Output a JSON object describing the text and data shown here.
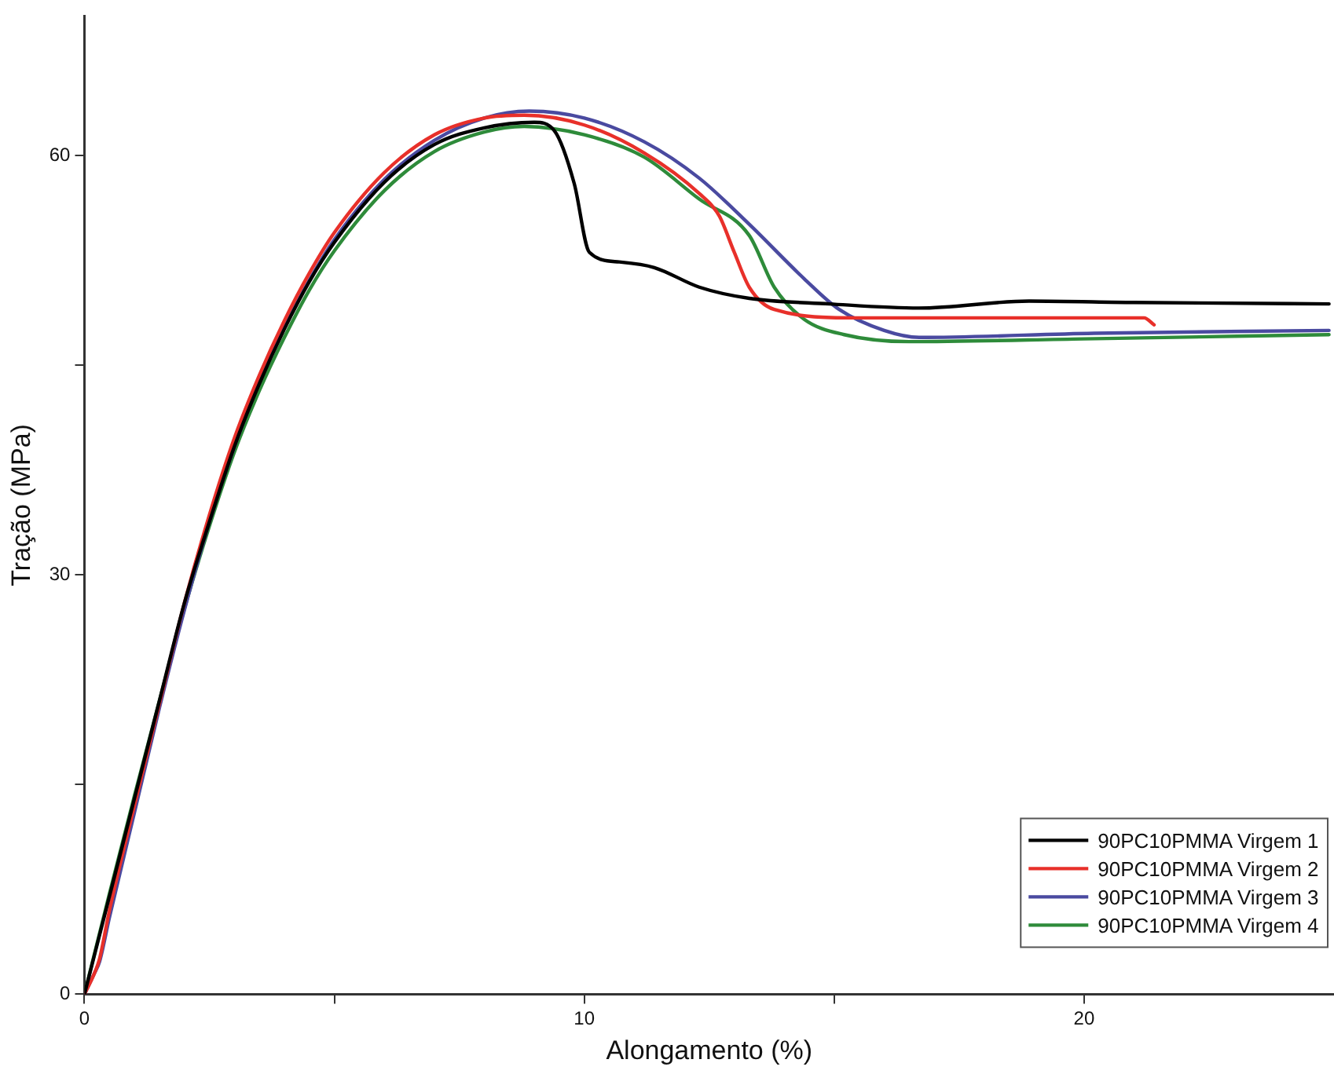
{
  "chart_data": {
    "type": "line",
    "xlabel": "Alongamento (%)",
    "ylabel": "Tração (MPa)",
    "xlim": [
      0,
      25
    ],
    "ylim": [
      0,
      70
    ],
    "xticks": [
      0,
      {
        "value": 5,
        "label": null
      },
      10,
      {
        "value": 15,
        "label": null
      },
      20
    ],
    "yticks": [
      0,
      {
        "value": 15,
        "label": null
      },
      30,
      {
        "value": 45,
        "label": null
      },
      60
    ],
    "grid": false,
    "legend": "bottom right",
    "marker": "none",
    "line_style": "solid",
    "series": [
      {
        "name": "90PC10PMMA Virgem 1",
        "color": "#000000",
        "x": [
          0,
          0.5,
          1,
          1.5,
          2,
          2.5,
          3,
          3.5,
          4,
          4.5,
          5,
          6,
          7,
          8,
          9,
          9.4,
          9.8,
          10.1,
          10.7,
          11.4,
          12.3,
          13.3,
          14.9,
          16.7,
          18.9,
          21,
          24.9
        ],
        "values": [
          0,
          7,
          14,
          21,
          28,
          33.8,
          39.2,
          43.7,
          47.6,
          51,
          53.8,
          58.1,
          60.8,
          62,
          62.4,
          61.8,
          58,
          53.1,
          52.4,
          52,
          50.6,
          49.8,
          49.4,
          49.1,
          49.6,
          49.5,
          49.4
        ]
      },
      {
        "name": "90PC10PMMA Virgem 2",
        "color": "#e8302a",
        "x": [
          0,
          0.2,
          0.3,
          0.5,
          1,
          1.5,
          2,
          2.5,
          3,
          3.5,
          4,
          4.5,
          5,
          6,
          7,
          8,
          8.8,
          10,
          11.2,
          12.3,
          12.7,
          13,
          13.3,
          13.8,
          15.4,
          19.8,
          21.2,
          21.4
        ],
        "values": [
          0,
          1.5,
          2.5,
          6,
          13.5,
          20.8,
          28,
          34.3,
          39.8,
          44.3,
          48.2,
          51.6,
          54.5,
          58.8,
          61.5,
          62.7,
          62.9,
          62.2,
          60.2,
          57.3,
          55.7,
          53.1,
          50.6,
          49,
          48.4,
          48.4,
          48.4,
          47.9
        ]
      },
      {
        "name": "90PC10PMMA Virgem 3",
        "color": "#4a4aa0",
        "x": [
          0,
          0.2,
          0.3,
          0.5,
          1,
          1.5,
          2,
          2.5,
          3,
          3.5,
          4,
          4.5,
          5,
          6,
          7,
          8,
          8.9,
          10,
          11.2,
          12.3,
          13.3,
          14.4,
          15.1,
          16,
          16.7,
          20.2,
          24.9
        ],
        "values": [
          0,
          1.5,
          2.3,
          5.5,
          13,
          20.5,
          27.5,
          33.8,
          39.2,
          43.8,
          47.7,
          51.1,
          54,
          58.3,
          61.1,
          62.7,
          63.2,
          62.7,
          61,
          58.4,
          55.1,
          51.2,
          49,
          47.5,
          47,
          47.3,
          47.5
        ]
      },
      {
        "name": "90PC10PMMA Virgem 4",
        "color": "#2e8b3a",
        "x": [
          0,
          0.5,
          1,
          1.5,
          2,
          2.5,
          3,
          3.5,
          4,
          4.5,
          5,
          6,
          7,
          8,
          8.8,
          10,
          11.2,
          12.3,
          13.3,
          13.8,
          14.4,
          15.2,
          16.5,
          20,
          24.9
        ],
        "values": [
          0,
          7.2,
          14.2,
          21,
          27.6,
          33.5,
          38.8,
          43.2,
          47,
          50.4,
          53.2,
          57.5,
          60.3,
          61.7,
          62.1,
          61.5,
          59.9,
          56.9,
          54.3,
          50.6,
          48.3,
          47.2,
          46.7,
          46.9,
          47.2
        ]
      }
    ]
  }
}
